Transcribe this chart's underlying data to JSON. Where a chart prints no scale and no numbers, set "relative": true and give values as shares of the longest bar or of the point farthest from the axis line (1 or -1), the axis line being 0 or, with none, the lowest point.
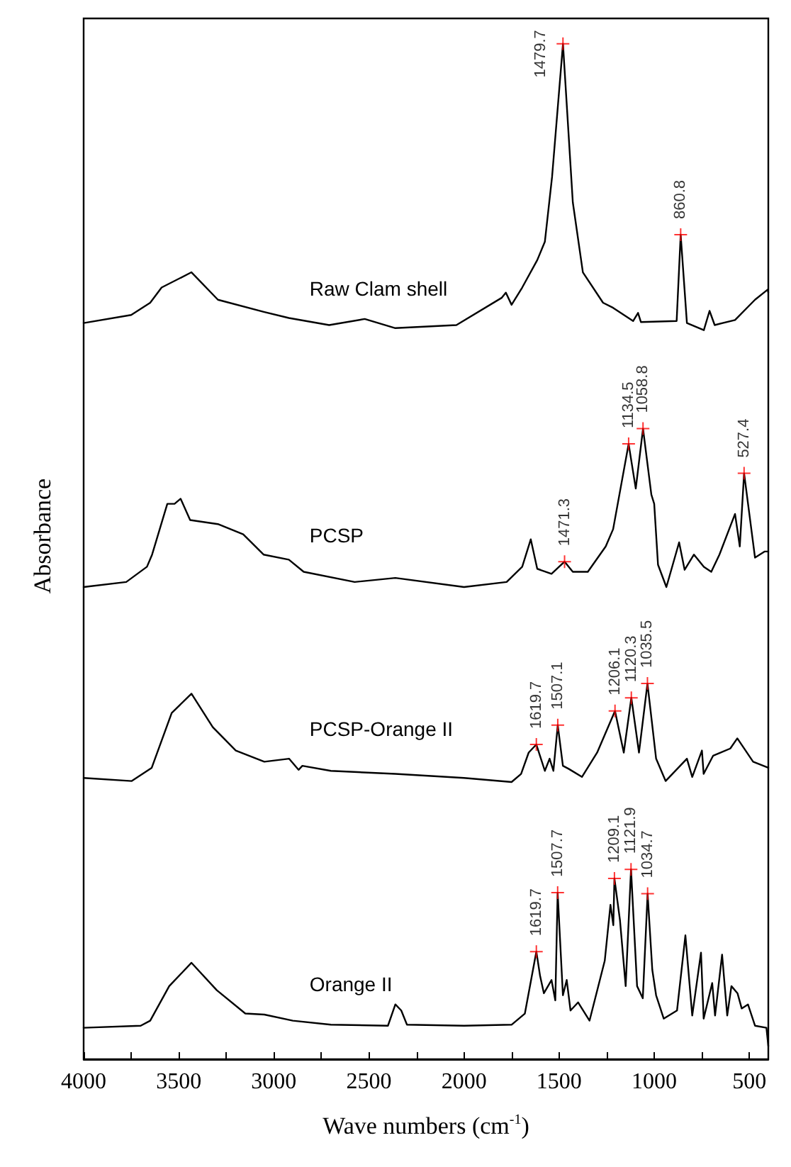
{
  "chart_data": {
    "type": "line",
    "xlabel": "Wave numbers (cm$^{-1}$)",
    "ylabel": "Absorbance",
    "relative": true,
    "xlim": [
      4000,
      400
    ],
    "xticks": [
      500,
      {
        "value": 750,
        "label": null
      },
      1000,
      {
        "value": 1250,
        "label": null
      },
      1500,
      {
        "value": 1750,
        "label": null
      },
      2000,
      {
        "value": 2250,
        "label": null
      },
      2500,
      {
        "value": 2750,
        "label": null
      },
      3000,
      {
        "value": 3250,
        "label": null
      },
      3500,
      {
        "value": 3750,
        "label": null
      },
      4000
    ],
    "legend": false,
    "grid": false,
    "marker": "none",
    "line_style": "solid",
    "series": [
      {
        "name": "Raw Clam shell",
        "color": "#000000",
        "x": [
          4000,
          3750,
          3650,
          3590,
          3433,
          3294,
          3053,
          2921,
          2709,
          2522,
          2361,
          2040,
          1801,
          1780,
          1750,
          1694,
          1615,
          1575,
          1537,
          1479.7,
          1428,
          1375,
          1269,
          1216,
          1111,
          1085,
          1070,
          882,
          860.8,
          828,
          739,
          709,
          682,
          575,
          470,
          403,
          400
        ],
        "values": [
          0.725,
          0.733,
          0.745,
          0.76,
          0.775,
          0.748,
          0.736,
          0.73,
          0.723,
          0.729,
          0.72,
          0.723,
          0.75,
          0.755,
          0.743,
          0.76,
          0.787,
          0.805,
          0.869,
          1.0,
          0.844,
          0.775,
          0.745,
          0.74,
          0.727,
          0.735,
          0.726,
          0.727,
          0.812,
          0.725,
          0.718,
          0.737,
          0.723,
          0.728,
          0.748,
          0.758,
          0.755
        ]
      },
      {
        "name": "PCSP",
        "color": "#000000",
        "x": [
          4000,
          3776,
          3667,
          3640,
          3560,
          3522,
          3490,
          3440,
          3294,
          3161,
          3054,
          2921,
          2843,
          2575,
          2361,
          2000,
          1776,
          1694,
          1649,
          1615,
          1540,
          1471.3,
          1428,
          1349,
          1255,
          1216,
          1134.5,
          1097,
          1058.8,
          1015,
          1000,
          980,
          936,
          869,
          840,
          791,
          739,
          700,
          657,
          575,
          550,
          527.4,
          470,
          420,
          400
        ],
        "values": [
          0.465,
          0.47,
          0.485,
          0.497,
          0.547,
          0.547,
          0.552,
          0.531,
          0.527,
          0.517,
          0.497,
          0.492,
          0.48,
          0.47,
          0.474,
          0.465,
          0.47,
          0.485,
          0.512,
          0.483,
          0.478,
          0.49,
          0.48,
          0.48,
          0.505,
          0.522,
          0.606,
          0.562,
          0.621,
          0.556,
          0.547,
          0.487,
          0.465,
          0.509,
          0.482,
          0.497,
          0.485,
          0.48,
          0.497,
          0.537,
          0.505,
          0.577,
          0.494,
          0.5,
          0.5
        ]
      },
      {
        "name": "PCSP-Orange II",
        "color": "#000000",
        "x": [
          4000,
          3747,
          3642,
          3537,
          3433,
          3321,
          3200,
          3050,
          2920,
          2870,
          2850,
          2700,
          2361,
          2000,
          1750,
          1700,
          1660,
          1619.7,
          1575,
          1550,
          1530,
          1507.1,
          1480,
          1450,
          1380,
          1300,
          1206.1,
          1160,
          1120.3,
          1080,
          1035.5,
          990,
          940,
          828,
          800,
          749,
          740,
          690,
          650,
          600,
          563,
          480,
          400
        ],
        "values": [
          0.277,
          0.274,
          0.287,
          0.341,
          0.36,
          0.327,
          0.304,
          0.293,
          0.296,
          0.285,
          0.289,
          0.284,
          0.281,
          0.277,
          0.273,
          0.281,
          0.302,
          0.31,
          0.284,
          0.296,
          0.284,
          0.329,
          0.289,
          0.286,
          0.278,
          0.302,
          0.343,
          0.302,
          0.356,
          0.302,
          0.37,
          0.296,
          0.274,
          0.296,
          0.278,
          0.304,
          0.281,
          0.299,
          0.302,
          0.306,
          0.316,
          0.293,
          0.287
        ]
      },
      {
        "name": "Orange II",
        "color": "#000000",
        "x": [
          4000,
          3700,
          3650,
          3550,
          3433,
          3300,
          3150,
          3050,
          2900,
          2700,
          2400,
          2361,
          2330,
          2300,
          2000,
          1750,
          1680,
          1619.7,
          1600,
          1580,
          1540,
          1520,
          1507.7,
          1480,
          1460,
          1440,
          1400,
          1340,
          1260,
          1230,
          1215,
          1209.1,
          1180,
          1150,
          1121.9,
          1090,
          1060,
          1034.7,
          1010,
          990,
          950,
          880,
          836,
          800,
          754,
          740,
          695,
          680,
          643,
          616,
          594,
          562,
          540,
          507,
          470,
          410,
          400
        ],
        "values": [
          0.031,
          0.033,
          0.038,
          0.072,
          0.095,
          0.068,
          0.045,
          0.044,
          0.038,
          0.034,
          0.033,
          0.054,
          0.048,
          0.034,
          0.033,
          0.034,
          0.045,
          0.106,
          0.082,
          0.065,
          0.078,
          0.058,
          0.164,
          0.063,
          0.078,
          0.048,
          0.056,
          0.038,
          0.097,
          0.152,
          0.132,
          0.178,
          0.137,
          0.072,
          0.187,
          0.072,
          0.06,
          0.163,
          0.088,
          0.063,
          0.04,
          0.048,
          0.122,
          0.043,
          0.105,
          0.04,
          0.075,
          0.043,
          0.103,
          0.043,
          0.072,
          0.065,
          0.05,
          0.054,
          0.033,
          0.031,
          0.013
        ]
      }
    ],
    "annotations": [
      {
        "text": "1479.7",
        "x": 1479.7,
        "y": 1.0
      },
      {
        "text": "860.8",
        "x": 860.8,
        "y": 0.812
      },
      {
        "text": "1134.5",
        "x": 1134.5,
        "y": 0.606
      },
      {
        "text": "1058.8",
        "x": 1058.8,
        "y": 0.621
      },
      {
        "text": "527.4",
        "x": 527.4,
        "y": 0.577
      },
      {
        "text": "1471.3",
        "x": 1471.3,
        "y": 0.49
      },
      {
        "text": "1619.7",
        "x": 1619.7,
        "y": 0.31
      },
      {
        "text": "1507.1",
        "x": 1507.1,
        "y": 0.329
      },
      {
        "text": "1206.1",
        "x": 1206.1,
        "y": 0.343
      },
      {
        "text": "1120.3",
        "x": 1120.3,
        "y": 0.356
      },
      {
        "text": "1035.5",
        "x": 1035.5,
        "y": 0.37
      },
      {
        "text": "1619.7",
        "x": 1619.7,
        "y": 0.106
      },
      {
        "text": "1507.7",
        "x": 1507.7,
        "y": 0.164
      },
      {
        "text": "1209.1",
        "x": 1209.1,
        "y": 0.178
      },
      {
        "text": "1121.9",
        "x": 1121.9,
        "y": 0.187
      },
      {
        "text": "1034.7",
        "x": 1034.7,
        "y": 0.163
      }
    ]
  }
}
